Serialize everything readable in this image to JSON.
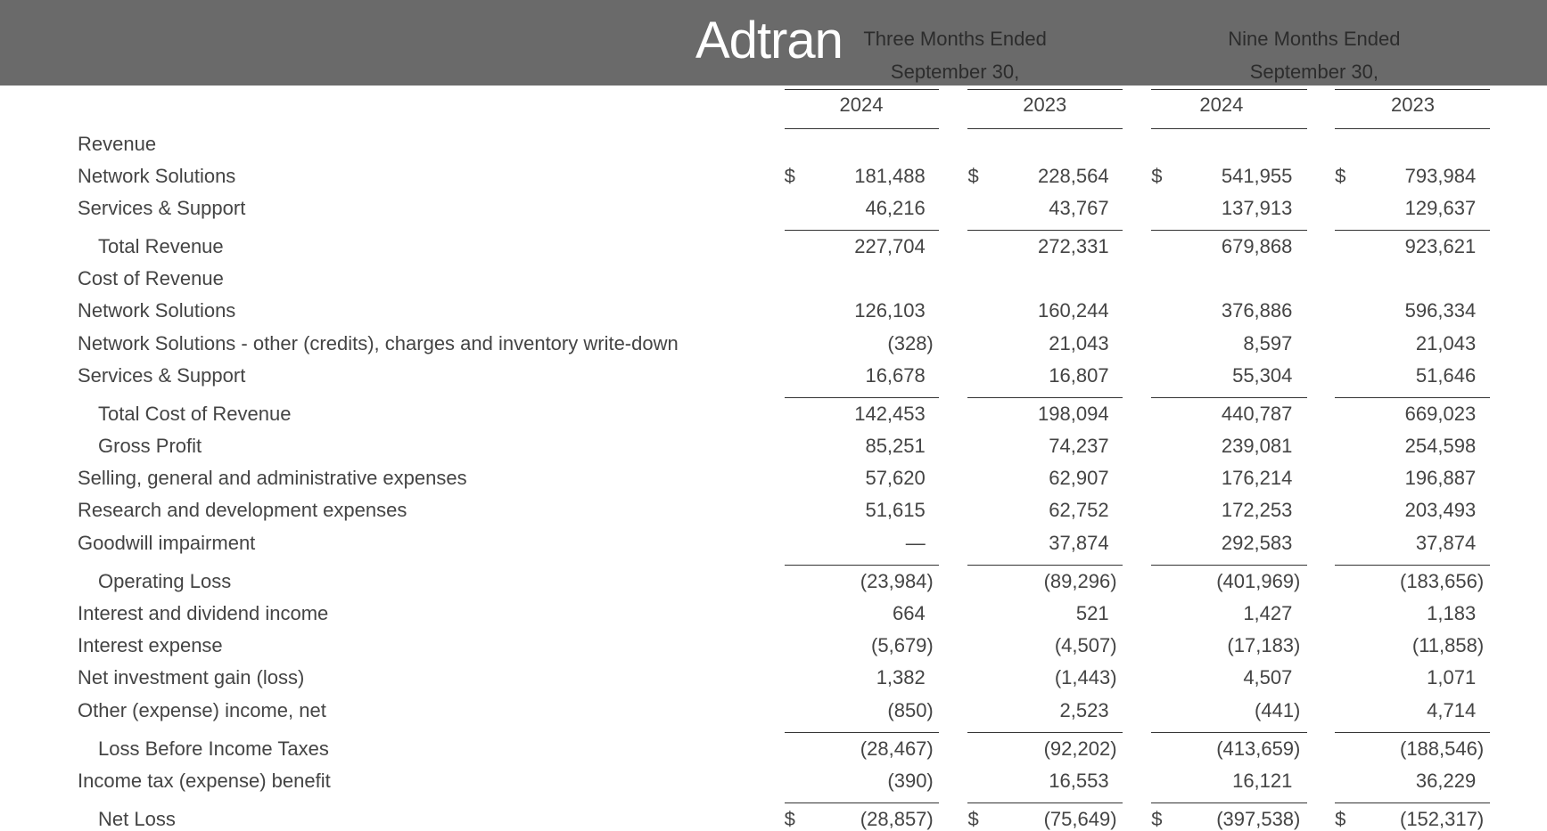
{
  "header": {
    "logo": "Adtran"
  },
  "table": {
    "groups": [
      {
        "title": "Three Months Ended",
        "subtitle": "September 30,",
        "years": [
          "2024",
          "2023"
        ]
      },
      {
        "title": "Nine Months Ended",
        "subtitle": "September 30,",
        "years": [
          "2024",
          "2023"
        ]
      }
    ],
    "rows": [
      {
        "label": "Revenue"
      },
      {
        "label": "Network Solutions",
        "prefix": [
          "$",
          "$",
          "$",
          "$"
        ],
        "values": [
          "181,488",
          "228,564",
          "541,955",
          "793,984"
        ]
      },
      {
        "label": "Services & Support",
        "values": [
          "46,216",
          "43,767",
          "137,913",
          "129,637"
        ]
      },
      {
        "label": "Total Revenue",
        "values": [
          "227,704",
          "272,331",
          "679,868",
          "923,621"
        ]
      },
      {
        "label": "Cost of Revenue"
      },
      {
        "label": "Network Solutions",
        "values": [
          "126,103",
          "160,244",
          "376,886",
          "596,334"
        ]
      },
      {
        "label": "Network Solutions - other (credits), charges and inventory write-down",
        "values": [
          "(328)",
          "21,043",
          "8,597",
          "21,043"
        ]
      },
      {
        "label": "Services & Support",
        "values": [
          "16,678",
          "16,807",
          "55,304",
          "51,646"
        ]
      },
      {
        "label": "Total Cost of Revenue",
        "values": [
          "142,453",
          "198,094",
          "440,787",
          "669,023"
        ]
      },
      {
        "label": "Gross Profit",
        "values": [
          "85,251",
          "74,237",
          "239,081",
          "254,598"
        ]
      },
      {
        "label": "Selling, general and administrative expenses",
        "values": [
          "57,620",
          "62,907",
          "176,214",
          "196,887"
        ]
      },
      {
        "label": "Research and development expenses",
        "values": [
          "51,615",
          "62,752",
          "172,253",
          "203,493"
        ]
      },
      {
        "label": "Goodwill impairment",
        "values": [
          "—",
          "37,874",
          "292,583",
          "37,874"
        ]
      },
      {
        "label": "Operating Loss",
        "values": [
          "(23,984)",
          "(89,296)",
          "(401,969)",
          "(183,656)"
        ]
      },
      {
        "label": "Interest and dividend income",
        "values": [
          "664",
          "521",
          "1,427",
          "1,183"
        ]
      },
      {
        "label": "Interest expense",
        "values": [
          "(5,679)",
          "(4,507)",
          "(17,183)",
          "(11,858)"
        ]
      },
      {
        "label": "Net investment gain (loss)",
        "values": [
          "1,382",
          "(1,443)",
          "4,507",
          "1,071"
        ]
      },
      {
        "label": "Other (expense) income, net",
        "values": [
          "(850)",
          "2,523",
          "(441)",
          "4,714"
        ]
      },
      {
        "label": "Loss Before Income Taxes",
        "values": [
          "(28,467)",
          "(92,202)",
          "(413,659)",
          "(188,546)"
        ]
      },
      {
        "label": "Income tax (expense) benefit",
        "values": [
          "(390)",
          "16,553",
          "16,121",
          "36,229"
        ]
      },
      {
        "label": "Net Loss",
        "prefix": [
          "$",
          "$",
          "$",
          "$"
        ],
        "values": [
          "(28,857)",
          "(75,649)",
          "(397,538)",
          "(152,317)"
        ]
      }
    ]
  }
}
